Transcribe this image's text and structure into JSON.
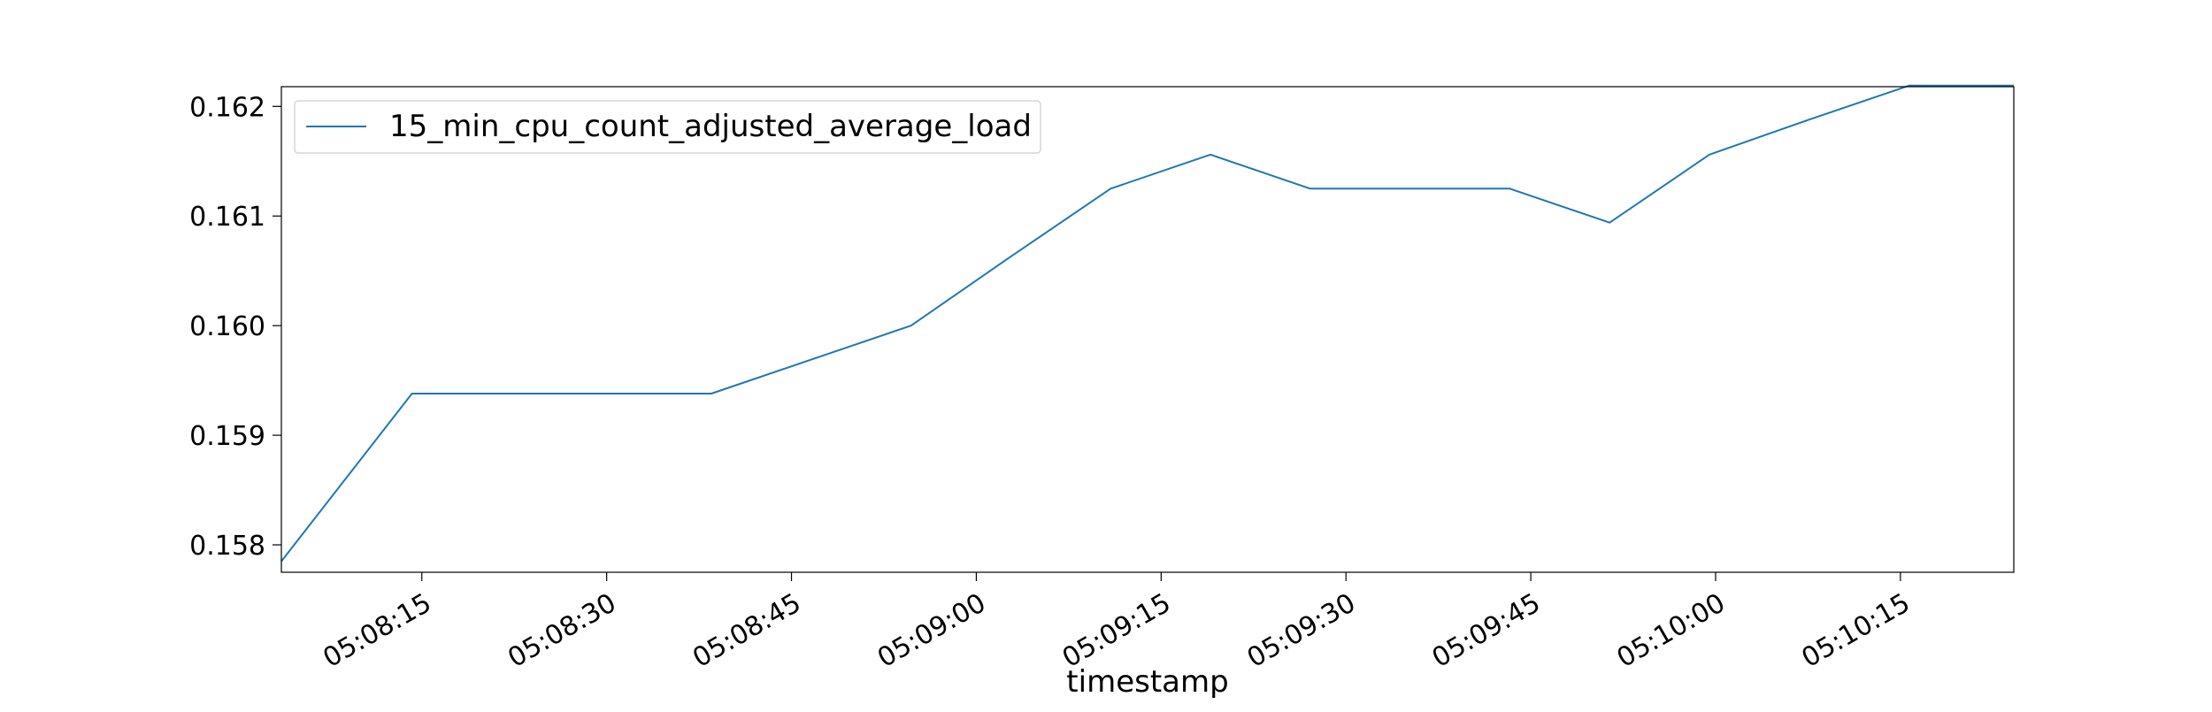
{
  "chart_data": {
    "type": "line",
    "title": "",
    "xlabel": "timestamp",
    "ylabel": "",
    "x_tick_labels": [
      "05:08:15",
      "05:08:30",
      "05:08:45",
      "05:09:00",
      "05:09:15",
      "05:09:30",
      "05:09:45",
      "05:10:00",
      "05:10:15"
    ],
    "x_tick_times": [
      "05:08:15",
      "05:08:30",
      "05:08:45",
      "05:09:00",
      "05:09:15",
      "05:09:30",
      "05:09:45",
      "05:10:00",
      "05:10:15"
    ],
    "y_tick_labels": [
      "0.158",
      "0.159",
      "0.160",
      "0.161",
      "0.162"
    ],
    "y_tick_values": [
      0.158,
      0.159,
      0.16,
      0.161,
      0.162
    ],
    "xlim": [
      "05:08:03.6",
      "05:10:24.2"
    ],
    "ylim": [
      0.15775,
      0.16218
    ],
    "grid": false,
    "legend_position": "top-left",
    "series": [
      {
        "name": "15_min_cpu_count_adjusted_average_load",
        "color": "#1f77b4",
        "x": [
          "05:08:03.6",
          "05:08:14.2",
          "05:08:22.3",
          "05:08:30.4",
          "05:08:38.5",
          "05:08:46.6",
          "05:08:54.7",
          "05:09:02.8",
          "05:09:10.9",
          "05:09:19.0",
          "05:09:27.1",
          "05:09:35.2",
          "05:09:43.3",
          "05:09:51.4",
          "05:09:59.5",
          "05:10:07.6",
          "05:10:15.7",
          "05:10:24.2"
        ],
        "y": [
          0.15785,
          0.15938,
          0.15938,
          0.15938,
          0.15938,
          0.15969,
          0.16,
          0.16063,
          0.16125,
          0.16156,
          0.16125,
          0.16125,
          0.16125,
          0.16094,
          0.16156,
          0.16188,
          0.16219,
          0.16219
        ]
      }
    ]
  }
}
